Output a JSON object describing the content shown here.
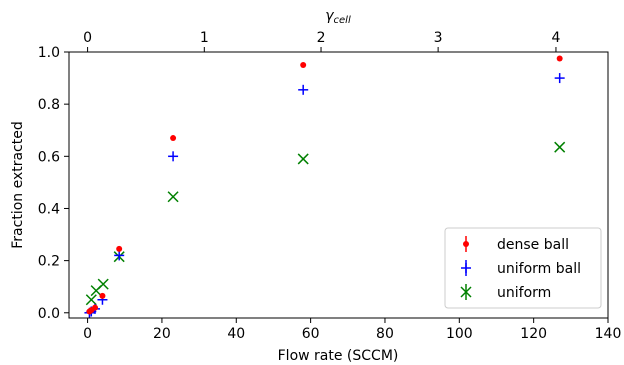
{
  "chart_data": {
    "type": "scatter",
    "xlabel": "Flow rate (SCCM)",
    "ylabel": "Fraction extracted",
    "top_xlabel": "γ",
    "top_xlabel_sub": "cell",
    "xlim": [
      -5,
      140
    ],
    "ylim": [
      -0.02,
      1.0
    ],
    "top_xlim": [
      -0.0404,
      1.131
    ],
    "x_ticks": [
      "0",
      "20",
      "40",
      "60",
      "80",
      "100",
      "120",
      "140"
    ],
    "x_tick_values": [
      0,
      20,
      40,
      60,
      80,
      100,
      120,
      140
    ],
    "y_ticks": [
      "0.0",
      "0.2",
      "0.4",
      "0.6",
      "0.8",
      "1.0"
    ],
    "y_tick_values": [
      0.0,
      0.2,
      0.4,
      0.6,
      0.8,
      1.0
    ],
    "top_ticks": [
      "0",
      "1",
      "2",
      "3",
      "4"
    ],
    "top_tick_values": [
      0,
      1,
      2,
      3,
      4
    ],
    "top_tick_flow": [
      0,
      31.4,
      62.8,
      94.3,
      126.0
    ],
    "grid": false,
    "legend_position": "lower-right",
    "series": [
      {
        "name": "dense ball",
        "color": "#ff0000",
        "marker": "dot",
        "x": [
          0.5,
          1.0,
          2.0,
          4.0,
          8.5,
          23.0,
          58.0,
          127.0
        ],
        "y": [
          0.005,
          0.01,
          0.02,
          0.065,
          0.245,
          0.67,
          0.95,
          0.975
        ]
      },
      {
        "name": "uniform ball",
        "color": "#0000ff",
        "marker": "plus",
        "x": [
          0.5,
          1.0,
          2.0,
          4.0,
          8.5,
          23.0,
          58.0,
          127.0
        ],
        "y": [
          0.0,
          0.005,
          0.015,
          0.05,
          0.22,
          0.6,
          0.855,
          0.9
        ]
      },
      {
        "name": "uniform",
        "color": "#008000",
        "marker": "x",
        "x": [
          1.0,
          2.3,
          4.2,
          8.5,
          23.0,
          58.0,
          127.0
        ],
        "y": [
          0.05,
          0.085,
          0.11,
          0.215,
          0.445,
          0.59,
          0.635
        ]
      }
    ]
  }
}
